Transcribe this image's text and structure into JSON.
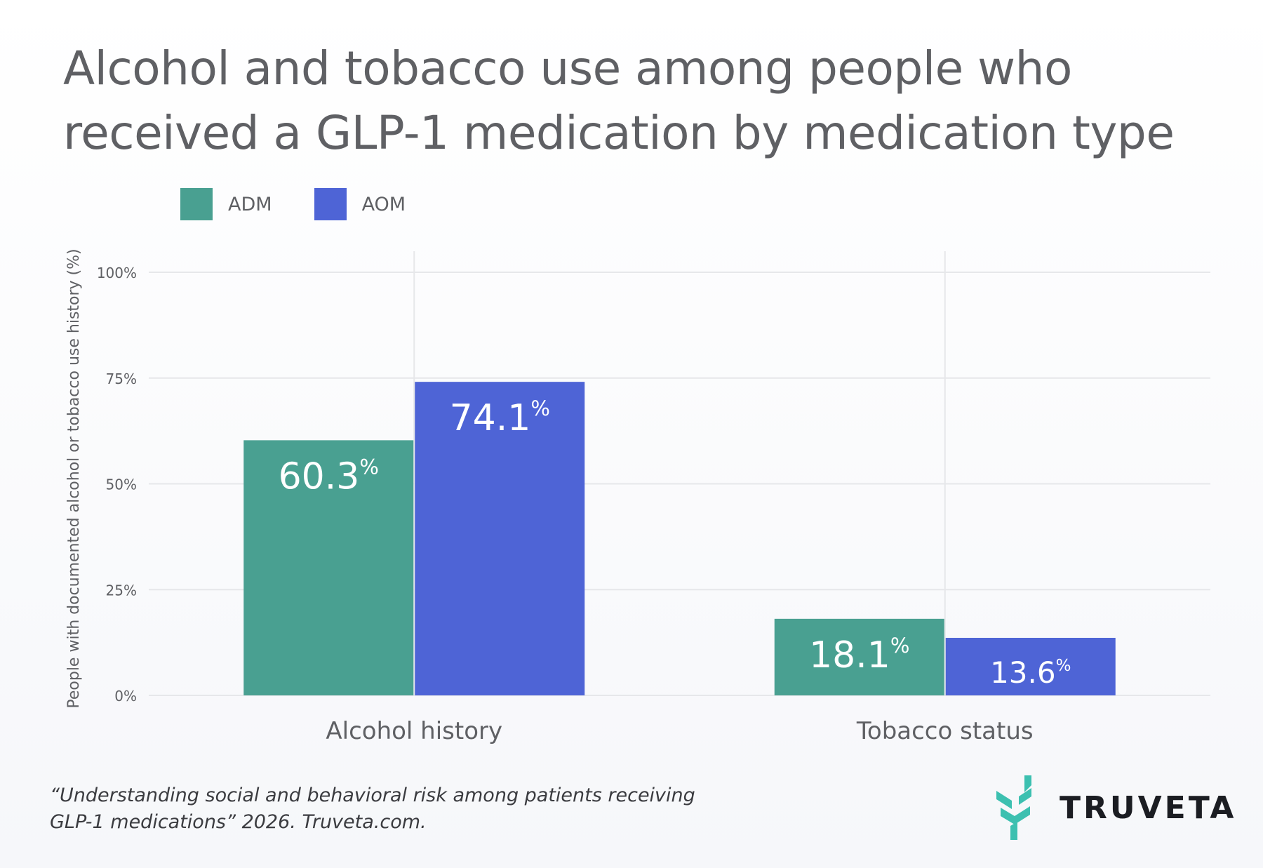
{
  "title_line1": "Alcohol and tobacco use among people who",
  "title_line2": "received a GLP-1 medication by medication type",
  "chart_data": {
    "type": "bar",
    "categories": [
      "Alcohol history",
      "Tobacco status"
    ],
    "series": [
      {
        "name": "ADM",
        "color": "#49a091",
        "values": [
          60.3,
          18.1
        ],
        "labels": [
          "60.3",
          "18.1"
        ]
      },
      {
        "name": "AOM",
        "color": "#4e64d6",
        "values": [
          74.1,
          13.6
        ],
        "labels": [
          "74.1",
          "13.6"
        ]
      }
    ],
    "ylabel": "People with documented alcohol or tobacco use history (%)",
    "yticks": [
      "0%",
      "25%",
      "50%",
      "75%",
      "100%"
    ],
    "ylim": [
      0,
      100
    ],
    "value_suffix": "%",
    "legend_position": "top-left",
    "grid": true
  },
  "footer_line1": "“Understanding social and behavioral risk among patients receiving",
  "footer_line2": "GLP-1 medications” 2026. Truveta.com.",
  "logo_text": "TRUVETA",
  "logo_color": "#3cc0b0"
}
